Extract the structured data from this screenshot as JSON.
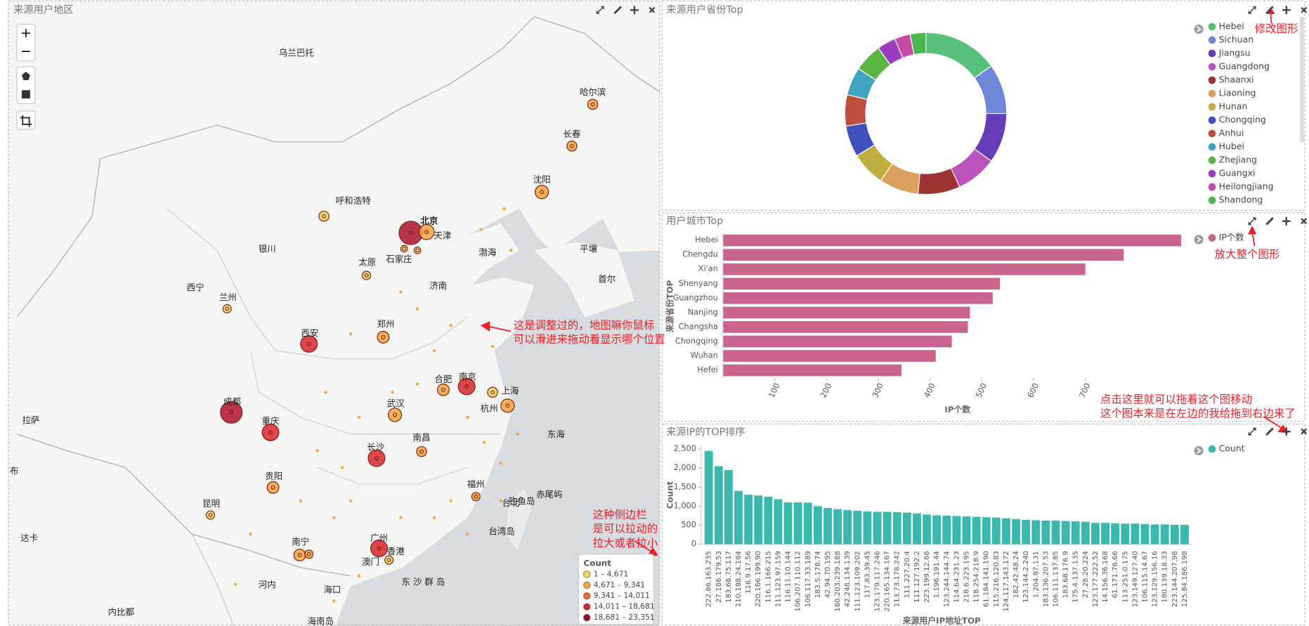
{
  "map": {
    "title": "来源用户地区",
    "zoom_in": "+",
    "zoom_out": "−",
    "labels": [
      "乌兰巴托",
      "哈尔滨",
      "长春",
      "沈阳",
      "呼和浩特",
      "北京",
      "天津",
      "银川",
      "平壤",
      "渤海",
      "太原",
      "石家庄",
      "首尔",
      "西宁",
      "兰州",
      "济南",
      "郑州",
      "西安",
      "合肥",
      "南京",
      "上海",
      "拉萨",
      "成都",
      "武汉",
      "杭州",
      "重庆",
      "东海",
      "南昌",
      "长沙",
      "贵阳",
      "福州",
      "赤尾屿",
      "钓鱼岛",
      "台北",
      "昆明",
      "台湾岛",
      "广州",
      "南宁",
      "香港",
      "澳门",
      "达卡",
      "河内",
      "东 沙 群 岛",
      "海口",
      "内比都",
      "海南岛",
      "布"
    ],
    "legend": {
      "title": "Count",
      "bins": [
        {
          "label": "1 – 4,671",
          "color": "#fbd25a"
        },
        {
          "label": "4,671 – 9,341",
          "color": "#f9a33d"
        },
        {
          "label": "9,341 – 14,011",
          "color": "#f26b2c"
        },
        {
          "label": "14,011 – 18,681",
          "color": "#d9262a"
        },
        {
          "label": "18,681 – 23,351",
          "color": "#9c0d29"
        }
      ]
    }
  },
  "chart_data": [
    {
      "type": "pie",
      "title": "来源用户省份Top",
      "categories": [
        "Hebei",
        "Sichuan",
        "Jiangsu",
        "Guangdong",
        "Shaanxi",
        "Liaoning",
        "Hunan",
        "Chongqing",
        "Anhui",
        "Hubei",
        "Zhejiang",
        "Guangxi",
        "Heilongjiang",
        "Shandong"
      ],
      "values": [
        48,
        32,
        32,
        26,
        27,
        25,
        22,
        20,
        20,
        18,
        18,
        12,
        10,
        10
      ],
      "colors": [
        "#57c17b",
        "#6f87d8",
        "#663db8",
        "#bc52bc",
        "#9e3533",
        "#daa05d",
        "#bfaf40",
        "#4050bf",
        "#bf5040",
        "#40a5bf",
        "#5ab543",
        "#9b3dc1",
        "#c44aa5",
        "#4ab84f"
      ]
    },
    {
      "type": "hbar",
      "title": "用户城市Top",
      "x_label": "IP个数",
      "y_label": "来源省份TOP",
      "categories": [
        "Hebei",
        "Chengdu",
        "Xi'an",
        "Shenyang",
        "Guangzhou",
        "Nanjing",
        "Changsha",
        "Chongqing",
        "Wuhan",
        "Hefei"
      ],
      "series": [
        {
          "name": "IP个数",
          "color": "#c8648e",
          "values": [
            885,
            774,
            700,
            535,
            521,
            477,
            473,
            442,
            411,
            345
          ]
        }
      ],
      "xlim": [
        0,
        890
      ],
      "xticks": [
        100,
        200,
        300,
        400,
        500,
        600,
        700
      ]
    },
    {
      "type": "bar",
      "title": "来源IP的TOP排序",
      "x_label": "来源用户IP地址TOP",
      "y_label": "Count",
      "categories": [
        "222.86.163.235",
        "27.186.179.53",
        "183.68.75.117",
        "110.188.24.184",
        "116.9.17.56",
        "220.166.199.90",
        "116.1.166.215",
        "111.123.97.159",
        "116.11.10.144",
        "106.207.110.112",
        "106.117.33.189",
        "183.5.178.74",
        "42.94.70.195",
        "180.203.239.188",
        "42.248.134.139",
        "111.123.109.202",
        "117.83.39.45",
        "123.179.117.246",
        "220.165.134.167",
        "113.73.178.242",
        "111.227.20.4",
        "111.127.192.2",
        "223.199.12.66",
        "1.196.191.44",
        "123.244.144.74",
        "114.64.231.23",
        "218.6.223.195",
        "118.254.218.9",
        "61.184.141.190",
        "115.216.120.83",
        "124.117.143.172",
        "182.42.48.24",
        "123.144.2.240",
        "1.204.87.131",
        "183.136.207.53",
        "106.111.137.85",
        "183.68.176.9",
        "175.4.137.135",
        "27.28.20.224",
        "123.177.222.52",
        "14.156.36.168",
        "61.171.76.66",
        "113.251.0.175",
        "123.149.127.40",
        "106.115.14.67",
        "123.129.156.16",
        "180.139.18.33",
        "223.144.207.98",
        "125.84.186.198"
      ],
      "series": [
        {
          "name": "Count",
          "color": "#3bb8ae",
          "values": [
            2450,
            2050,
            1950,
            1400,
            1300,
            1280,
            1250,
            1180,
            1100,
            1100,
            1090,
            1000,
            950,
            920,
            900,
            880,
            860,
            850,
            850,
            840,
            830,
            810,
            780,
            760,
            750,
            740,
            730,
            720,
            710,
            700,
            680,
            660,
            640,
            630,
            620,
            620,
            610,
            600,
            590,
            560,
            560,
            550,
            540,
            540,
            530,
            520,
            520,
            510,
            510
          ]
        }
      ],
      "ylim": [
        0,
        2500
      ],
      "yticks": [
        0,
        500,
        {
          "value": 1000,
          "label": "1,000"
        },
        {
          "value": 1500,
          "label": "1,500"
        },
        {
          "value": 2000,
          "label": "2,000"
        },
        {
          "value": 2500,
          "label": "2,500"
        }
      ]
    }
  ],
  "annotations": [
    [
      "修改图形"
    ],
    [
      "放大整个图形"
    ],
    [
      "这是调整过的，地图嘛你鼠标",
      "可以滑进来拖动看显示哪个位置"
    ],
    [
      "点击这里就可以拖着这个图移动",
      "这个图本来是在左边的我给拖到右边来了"
    ],
    [
      "这种侧边栏",
      "是可以拉动的",
      "拉大或者拉小"
    ]
  ]
}
